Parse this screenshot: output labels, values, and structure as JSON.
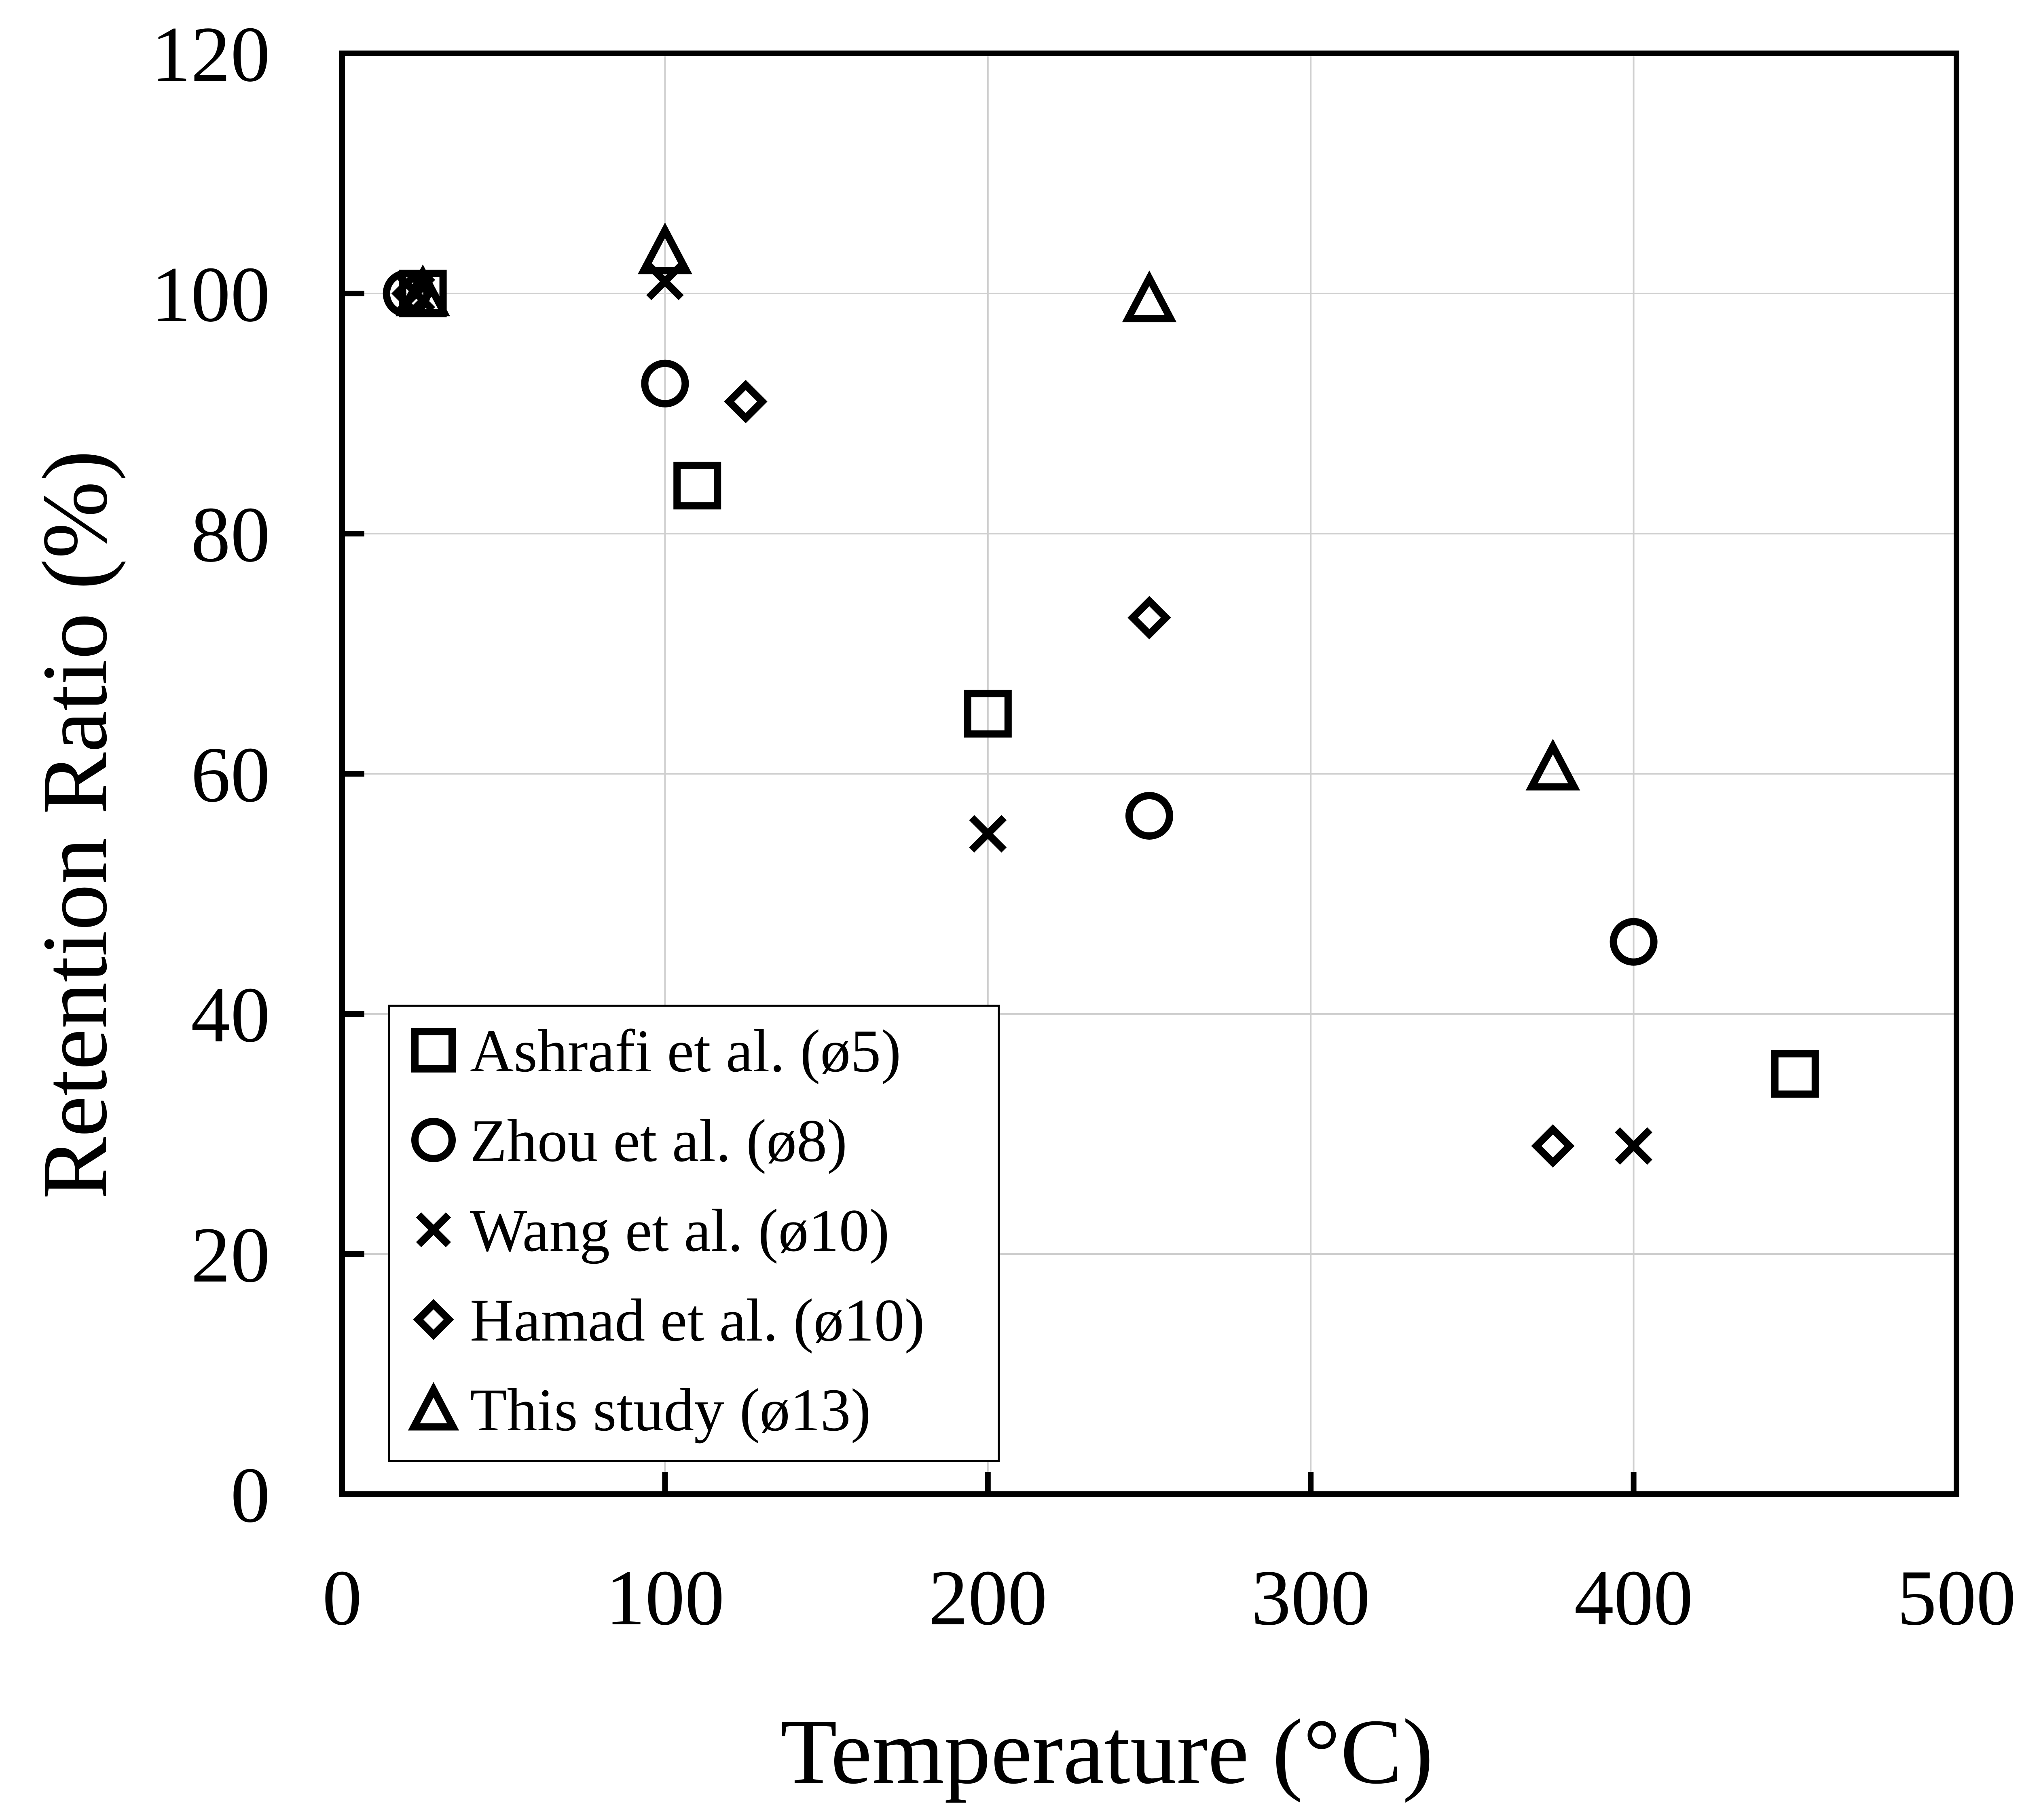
{
  "chart_data": {
    "type": "scatter",
    "title": "",
    "xlabel": "Temperature (°C)",
    "ylabel": "Retention Ratio (%)",
    "xlim": [
      0,
      500
    ],
    "ylim": [
      0,
      120
    ],
    "xticks": [
      0,
      100,
      200,
      300,
      400,
      500
    ],
    "yticks": [
      0,
      20,
      40,
      60,
      80,
      100,
      120
    ],
    "grid": true,
    "legend_position": "bottom-left",
    "series": [
      {
        "name": "Ashrafi et al. (ø5)",
        "marker": "square",
        "points": [
          [
            25,
            100
          ],
          [
            110,
            84
          ],
          [
            200,
            65
          ],
          [
            450,
            35
          ]
        ]
      },
      {
        "name": "Zhou et al. (ø8)",
        "marker": "circle",
        "points": [
          [
            20,
            100
          ],
          [
            100,
            92.5
          ],
          [
            250,
            56.5
          ],
          [
            400,
            46
          ]
        ]
      },
      {
        "name": "Wang et al. (ø10)",
        "marker": "x",
        "points": [
          [
            23,
            100
          ],
          [
            100,
            101
          ],
          [
            200,
            55
          ],
          [
            400,
            29
          ]
        ]
      },
      {
        "name": "Hamad et al. (ø10)",
        "marker": "diamond",
        "points": [
          [
            22,
            100
          ],
          [
            125,
            91
          ],
          [
            250,
            73
          ],
          [
            375,
            29
          ]
        ]
      },
      {
        "name": "This study (ø13)",
        "marker": "triangle",
        "points": [
          [
            25,
            100
          ],
          [
            100,
            103.5
          ],
          [
            250,
            99.5
          ],
          [
            375,
            60.5
          ]
        ]
      }
    ]
  }
}
